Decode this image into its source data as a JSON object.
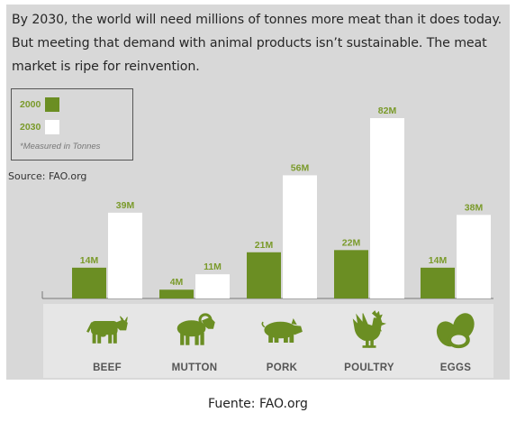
{
  "intro_text": "By 2030, the world will need millions of tonnes more meat than it does today. But meeting that demand with animal products isn’t sustainable. The meat market is ripe for reinvention.",
  "legend": {
    "items": [
      {
        "label": "2000",
        "color": "#6b8e23"
      },
      {
        "label": "2030",
        "color": "#ffffff"
      }
    ],
    "note": "*Measured in Tonnes"
  },
  "source": "Source: FAO.org",
  "caption": "Fuente: FAO.org",
  "colors": {
    "bar_2000": "#6b8e23",
    "bar_2030": "#ffffff",
    "label_green": "#7a9a2a",
    "icon_green": "#6b8e23",
    "category_text": "#555555",
    "background": "#d8d8d8",
    "icon_band": "#e6e6e6"
  },
  "chart_data": {
    "type": "bar",
    "categories": [
      "BEEF",
      "MUTTON",
      "PORK",
      "POULTRY",
      "EGGS"
    ],
    "series": [
      {
        "name": "2000",
        "values": [
          14,
          4,
          21,
          22,
          14
        ],
        "labels": [
          "14M",
          "4M",
          "21M",
          "22M",
          "14M"
        ]
      },
      {
        "name": "2030",
        "values": [
          39,
          11,
          56,
          82,
          38
        ],
        "labels": [
          "39M",
          "11M",
          "56M",
          "82M",
          "38M"
        ]
      }
    ],
    "icons": [
      "cow-icon",
      "ram-icon",
      "pig-icon",
      "rooster-icon",
      "eggs-icon"
    ],
    "ylim": [
      0,
      82
    ],
    "grid": false,
    "legend_position": "top-left"
  }
}
